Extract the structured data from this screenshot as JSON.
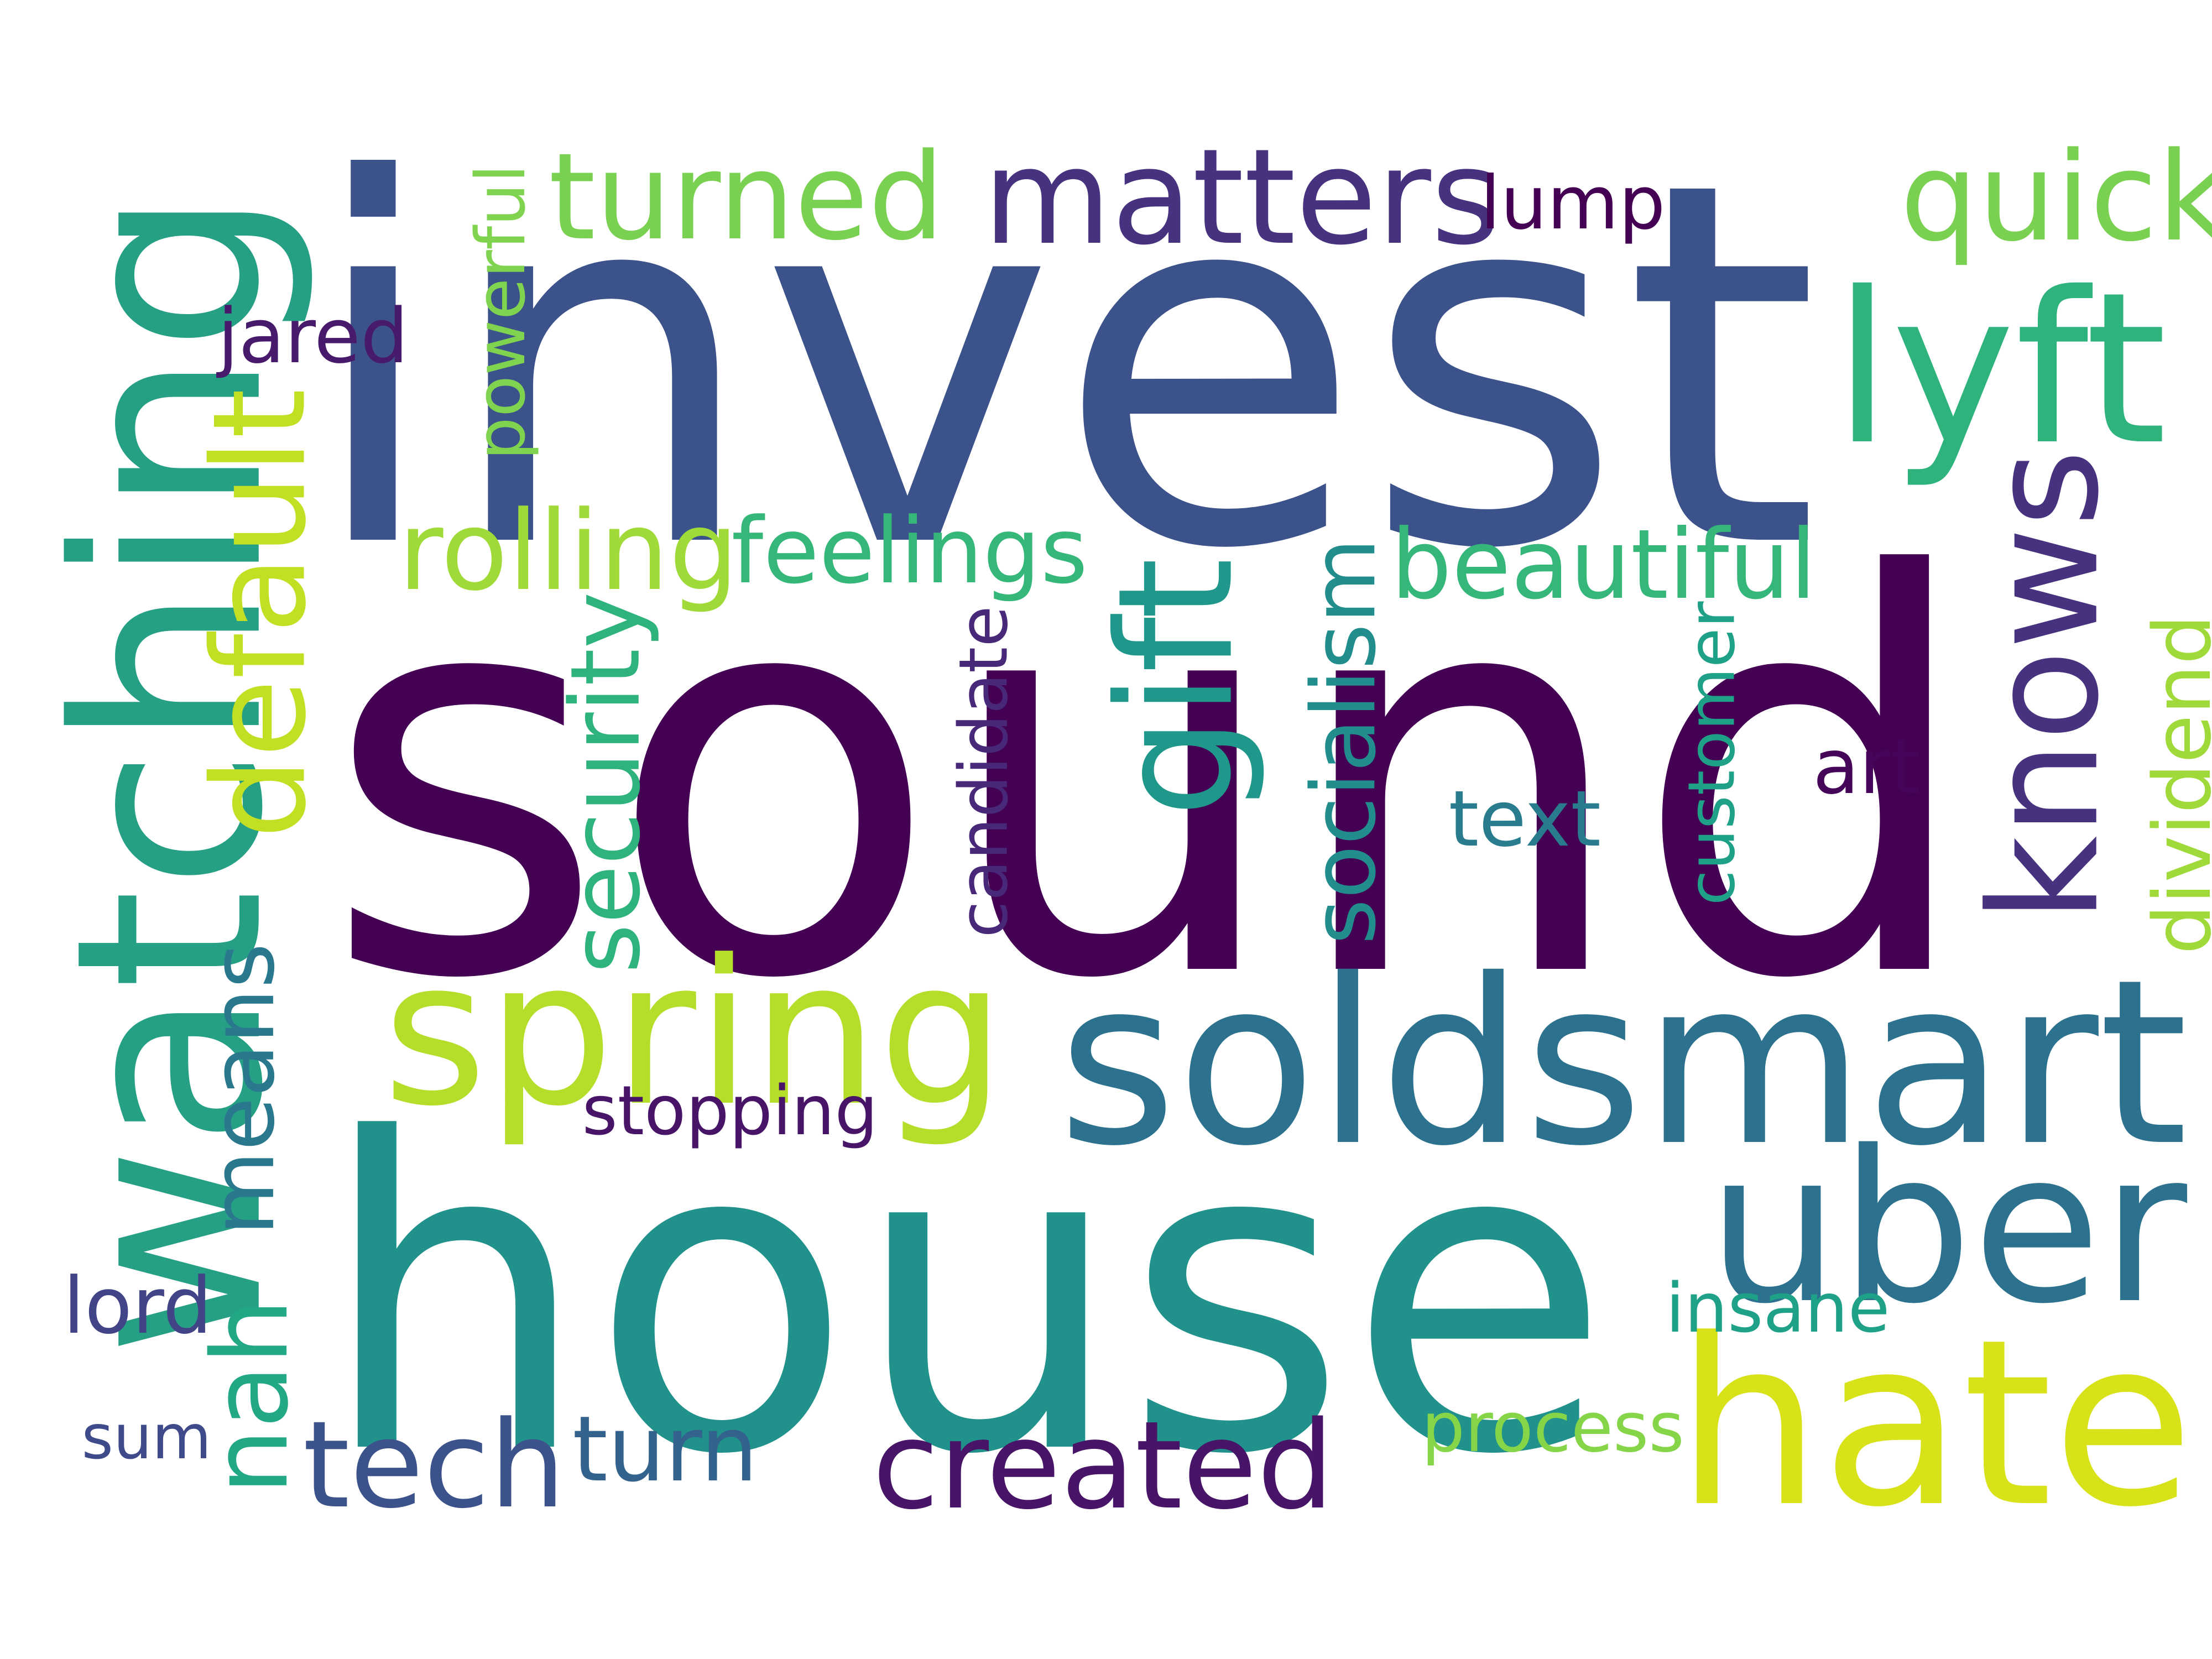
{
  "words": [
    {
      "text": "sound",
      "color": "#440154",
      "vertical": false
    },
    {
      "text": "house",
      "color": "#21918C",
      "vertical": false
    },
    {
      "text": "invest",
      "color": "#3B528B",
      "vertical": false
    },
    {
      "text": "watching",
      "color": "#26A085",
      "vertical": true
    },
    {
      "text": "soldsmart",
      "color": "#2C728E",
      "vertical": false
    },
    {
      "text": "uber",
      "color": "#2C728E",
      "vertical": false
    },
    {
      "text": "spring",
      "color": "#B5DE2B",
      "vertical": false
    },
    {
      "text": "hate",
      "color": "#D8E219",
      "vertical": false
    },
    {
      "text": "knows",
      "color": "#46327E",
      "vertical": true
    },
    {
      "text": "matters",
      "color": "#46327E",
      "vertical": false
    },
    {
      "text": "turned",
      "color": "#7AD151",
      "vertical": false
    },
    {
      "text": "quick",
      "color": "#7AD151",
      "vertical": false
    },
    {
      "text": "lyft",
      "color": "#2EB37C",
      "vertical": false
    },
    {
      "text": "default",
      "color": "#C2DF23",
      "vertical": true
    },
    {
      "text": "means",
      "color": "#2A788E",
      "vertical": true
    },
    {
      "text": "nah",
      "color": "#22A884",
      "vertical": true
    },
    {
      "text": "gift",
      "color": "#1F988B",
      "vertical": true
    },
    {
      "text": "created",
      "color": "#481467",
      "vertical": false
    },
    {
      "text": "tech",
      "color": "#3B528B",
      "vertical": false
    },
    {
      "text": "turn",
      "color": "#33638D",
      "vertical": false
    },
    {
      "text": "beautiful",
      "color": "#35B779",
      "vertical": false
    },
    {
      "text": "rolling",
      "color": "#A0DA39",
      "vertical": false
    },
    {
      "text": "feelings",
      "color": "#35B779",
      "vertical": false
    },
    {
      "text": "security",
      "color": "#2EB37C",
      "vertical": true
    },
    {
      "text": "socialism",
      "color": "#228D8D",
      "vertical": true
    },
    {
      "text": "candidate",
      "color": "#482878",
      "vertical": true
    },
    {
      "text": "customer",
      "color": "#1FA188",
      "vertical": true
    },
    {
      "text": "dividend",
      "color": "#9FDA3A",
      "vertical": true
    },
    {
      "text": "powerful",
      "color": "#7FD34E",
      "vertical": true
    },
    {
      "text": "jared",
      "color": "#481A6C",
      "vertical": false
    },
    {
      "text": "lump",
      "color": "#440154",
      "vertical": false
    },
    {
      "text": "stopping",
      "color": "#481467",
      "vertical": false
    },
    {
      "text": "art",
      "color": "#450559",
      "vertical": false
    },
    {
      "text": "text",
      "color": "#287C8E",
      "vertical": false
    },
    {
      "text": "insane",
      "color": "#1FA188",
      "vertical": false
    },
    {
      "text": "process",
      "color": "#86D549",
      "vertical": false
    },
    {
      "text": "lord",
      "color": "#414487",
      "vertical": false
    },
    {
      "text": "sum",
      "color": "#3E4A89",
      "vertical": false
    }
  ]
}
